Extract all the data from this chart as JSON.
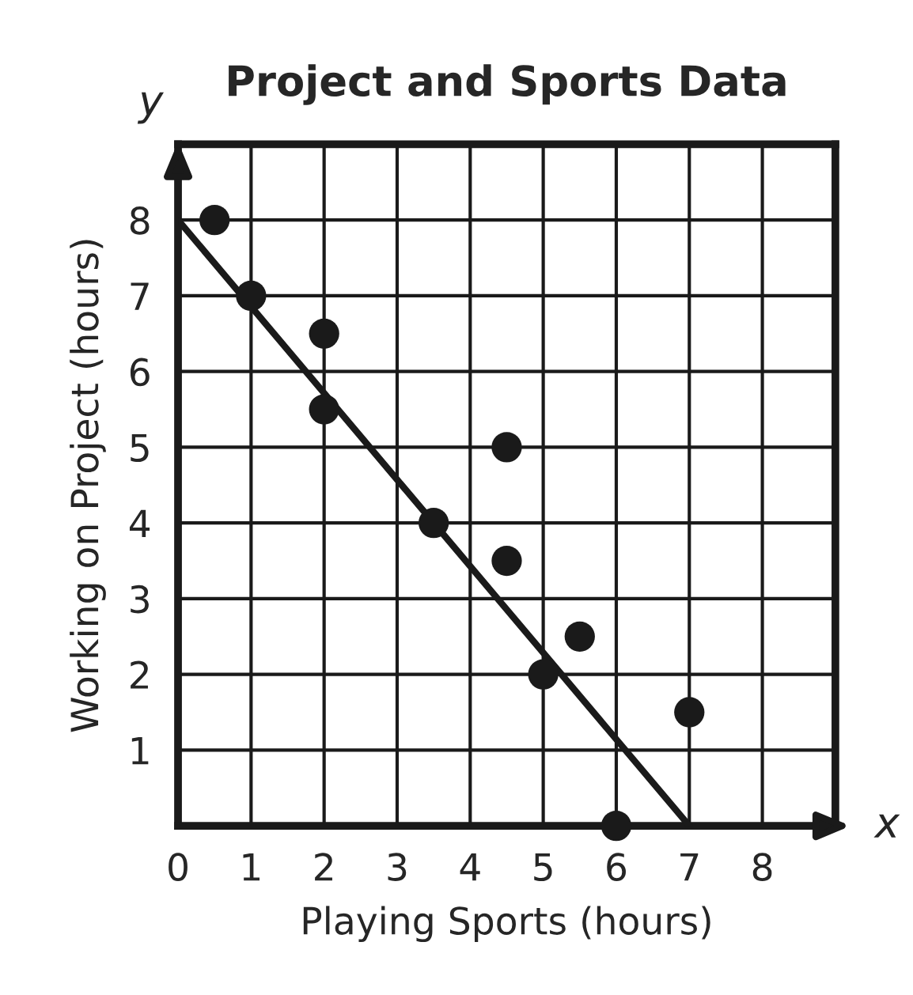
{
  "chart_data": {
    "type": "scatter",
    "title": "Project and Sports Data",
    "xlabel": "Playing Sports (hours)",
    "ylabel": "Working on Project (hours)",
    "annotations": [
      "x",
      "y"
    ],
    "xlim": [
      0,
      9
    ],
    "ylim": [
      0,
      9
    ],
    "xticks": [
      {
        "value": 0,
        "label": "0"
      },
      1,
      2,
      3,
      4,
      5,
      6,
      7,
      8,
      {
        "value": 9,
        "label": null
      }
    ],
    "yticks": [
      {
        "value": 0,
        "label": null
      },
      1,
      2,
      3,
      4,
      5,
      6,
      7,
      8,
      {
        "value": 9,
        "label": null
      }
    ],
    "grid": true,
    "series": [
      {
        "marker": "circle",
        "color": "#1a1a1a",
        "x": [
          0.5,
          1,
          2,
          2,
          3.5,
          4.5,
          4.5,
          5,
          5.5,
          6,
          7
        ],
        "values": [
          8,
          7,
          6.5,
          5.5,
          4,
          5,
          3.5,
          2,
          2.5,
          0,
          1.5
        ]
      },
      {
        "type": "line",
        "marker": "none",
        "color": "#1a1a1a",
        "line_style": "solid",
        "x": [
          0,
          7
        ],
        "values": [
          8,
          0
        ]
      }
    ]
  }
}
